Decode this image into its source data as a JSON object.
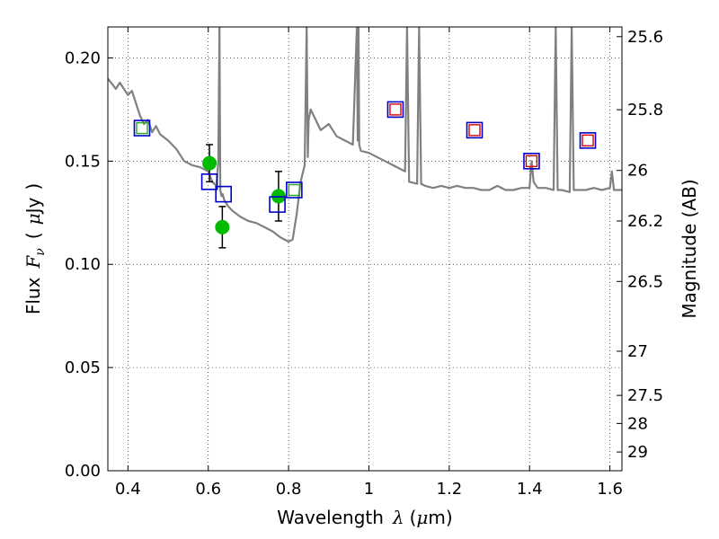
{
  "chart_data": {
    "type": "scatter",
    "title": "",
    "xlabel": {
      "prefix": "Wavelength",
      "symbol": "λ",
      "unit_open": "(",
      "unit_mu": "μ",
      "unit_rest": "m)"
    },
    "ylabel": {
      "prefix": "Flux",
      "symbol": "F",
      "subscript": "ν",
      "unit_open": "(",
      "unit_mu": "μ",
      "unit_rest": "Jy",
      "unit_close": ")"
    },
    "y2label": "Magnitude (AB)",
    "xlim": [
      0.35,
      1.63
    ],
    "ylim": [
      0.0,
      0.215
    ],
    "grid": true,
    "x_ticks": [
      0.4,
      0.6,
      0.8,
      1.0,
      1.2,
      1.4,
      1.6
    ],
    "x_tick_labels": [
      "0.4",
      "0.6",
      "0.8",
      "1",
      "1.2",
      "1.4",
      "1.6"
    ],
    "y_ticks": [
      0.0,
      0.05,
      0.1,
      0.15,
      0.2
    ],
    "y_tick_labels": [
      "0.00",
      "0.05",
      "0.10",
      "0.15",
      "0.20"
    ],
    "y2_ticks": [
      {
        "label": "25.6",
        "flux": 0.2103
      },
      {
        "label": "25.8",
        "flux": 0.1749
      },
      {
        "label": "26",
        "flux": 0.1455
      },
      {
        "label": "26.2",
        "flux": 0.121
      },
      {
        "label": "26.5",
        "flux": 0.0917
      },
      {
        "label": "27",
        "flux": 0.0579
      },
      {
        "label": "27.5",
        "flux": 0.0365
      },
      {
        "label": "28",
        "flux": 0.0229
      },
      {
        "label": "29",
        "flux": 0.0091
      }
    ],
    "series": [
      {
        "kind": "model-spectrum",
        "color": "#808080",
        "x": [
          0.35,
          0.37,
          0.38,
          0.4,
          0.41,
          0.42,
          0.43,
          0.44,
          0.45,
          0.46,
          0.47,
          0.48,
          0.5,
          0.52,
          0.54,
          0.56,
          0.58,
          0.6,
          0.61,
          0.62,
          0.625,
          0.628,
          0.63,
          0.633,
          0.636,
          0.64,
          0.65,
          0.66,
          0.68,
          0.7,
          0.72,
          0.74,
          0.76,
          0.78,
          0.8,
          0.81,
          0.82,
          0.83,
          0.84,
          0.845,
          0.848,
          0.85,
          0.855,
          0.86,
          0.88,
          0.9,
          0.92,
          0.94,
          0.96,
          0.97,
          0.972,
          0.974,
          0.976,
          0.98,
          1.0,
          1.02,
          1.04,
          1.06,
          1.08,
          1.09,
          1.095,
          1.1,
          1.12,
          1.125,
          1.13,
          1.14,
          1.16,
          1.18,
          1.2,
          1.22,
          1.24,
          1.26,
          1.28,
          1.3,
          1.32,
          1.34,
          1.36,
          1.38,
          1.4,
          1.405,
          1.41,
          1.42,
          1.44,
          1.46,
          1.465,
          1.47,
          1.48,
          1.5,
          1.505,
          1.51,
          1.52,
          1.54,
          1.56,
          1.58,
          1.6,
          1.605,
          1.61,
          1.62,
          1.63
        ],
        "y": [
          0.19,
          0.185,
          0.188,
          0.182,
          0.184,
          0.178,
          0.172,
          0.168,
          0.17,
          0.164,
          0.167,
          0.163,
          0.16,
          0.156,
          0.15,
          0.148,
          0.147,
          0.145,
          0.14,
          0.138,
          0.15,
          0.215,
          0.136,
          0.133,
          0.134,
          0.131,
          0.128,
          0.126,
          0.123,
          0.121,
          0.12,
          0.118,
          0.116,
          0.113,
          0.111,
          0.112,
          0.124,
          0.14,
          0.148,
          0.215,
          0.152,
          0.17,
          0.175,
          0.173,
          0.165,
          0.168,
          0.162,
          0.16,
          0.158,
          0.215,
          0.16,
          0.215,
          0.158,
          0.155,
          0.154,
          0.152,
          0.15,
          0.148,
          0.146,
          0.145,
          0.215,
          0.14,
          0.139,
          0.215,
          0.139,
          0.138,
          0.137,
          0.138,
          0.137,
          0.138,
          0.137,
          0.137,
          0.136,
          0.136,
          0.138,
          0.136,
          0.136,
          0.137,
          0.137,
          0.15,
          0.14,
          0.137,
          0.137,
          0.136,
          0.215,
          0.136,
          0.136,
          0.135,
          0.215,
          0.136,
          0.136,
          0.136,
          0.137,
          0.136,
          0.137,
          0.145,
          0.136,
          0.136,
          0.136
        ]
      },
      {
        "kind": "observed",
        "color": "#00bb00",
        "x": [
          0.603,
          0.635,
          0.775
        ],
        "y": [
          0.149,
          0.118,
          0.133
        ],
        "yerr": [
          0.009,
          0.01,
          0.012
        ]
      },
      {
        "kind": "model-photometry-blue",
        "color": "#0000cc",
        "x": [
          0.435,
          0.603,
          0.638,
          0.772,
          0.814,
          1.066,
          1.263,
          1.405,
          1.545
        ],
        "y": [
          0.166,
          0.14,
          0.134,
          0.129,
          0.136,
          0.175,
          0.165,
          0.15,
          0.16
        ]
      },
      {
        "kind": "observed-photometry-red",
        "color": "#dd0000",
        "x": [
          1.066,
          1.263,
          1.405,
          1.545
        ],
        "y": [
          0.175,
          0.165,
          0.15,
          0.16
        ]
      },
      {
        "kind": "observed-photometry-green",
        "color": "#22aa22",
        "x": [
          0.435,
          0.814
        ],
        "y": [
          0.166,
          0.136
        ]
      }
    ]
  }
}
